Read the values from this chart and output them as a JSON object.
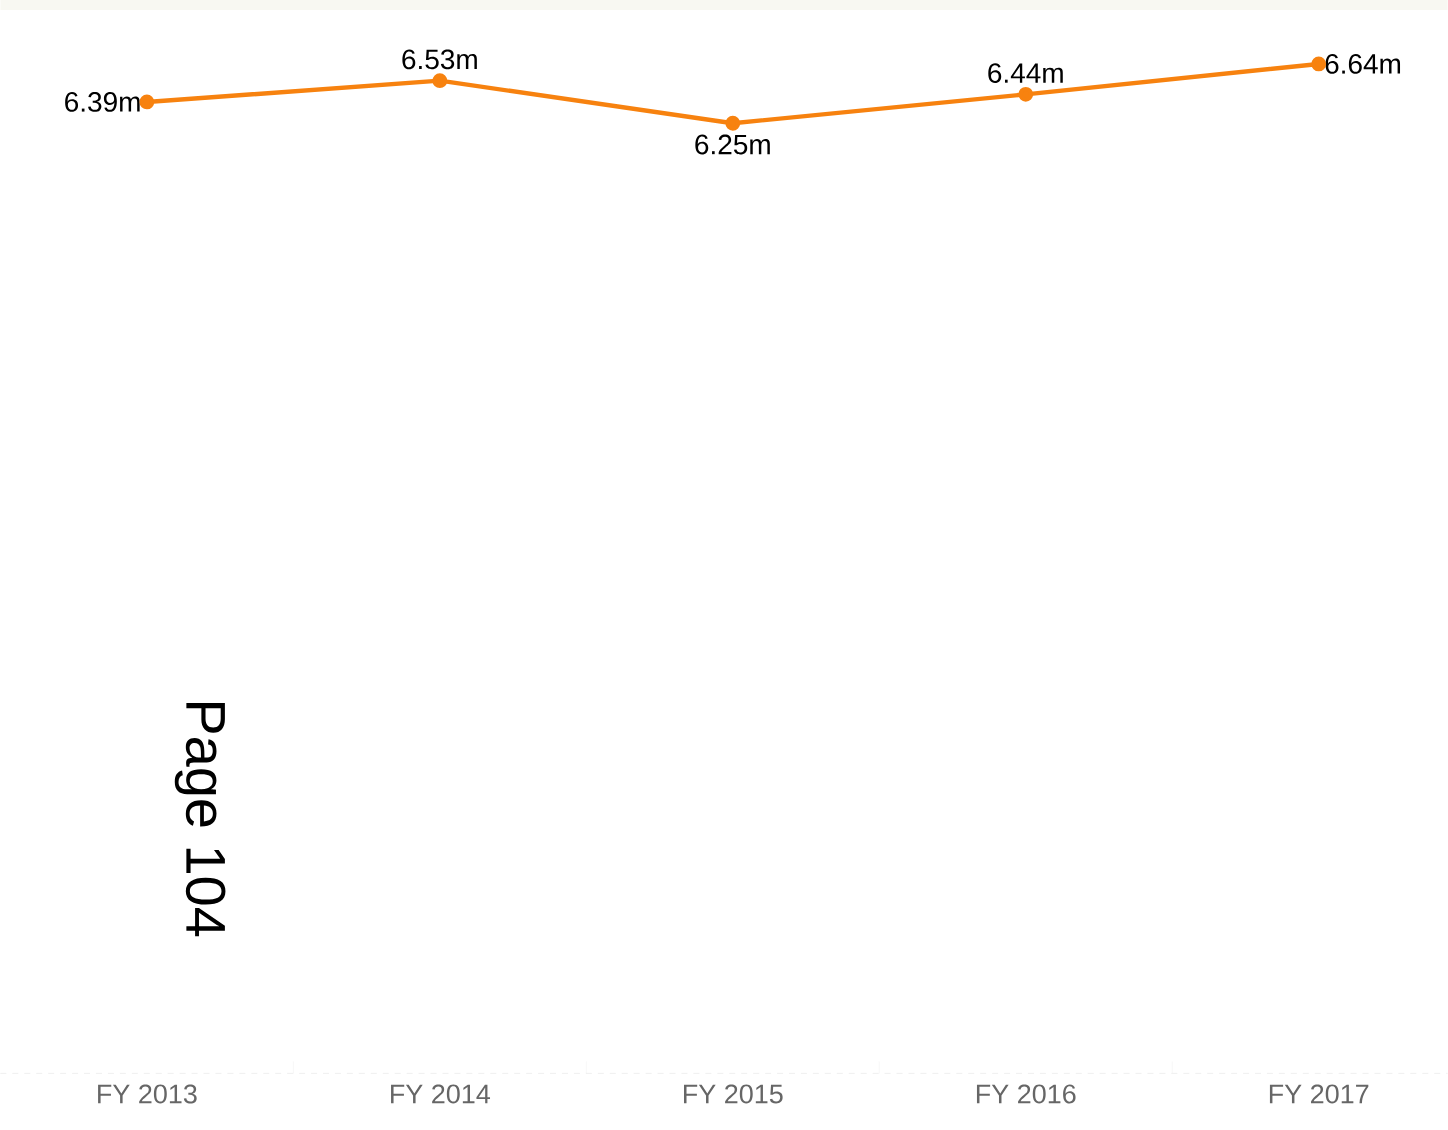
{
  "chart_data": {
    "type": "line",
    "categories": [
      "FY 2013",
      "FY 2014",
      "FY 2015",
      "FY 2016",
      "FY 2017"
    ],
    "series": [
      {
        "color": "#f7820f",
        "values": [
          6.39,
          6.53,
          6.25,
          6.44,
          6.64
        ],
        "value_labels": [
          "6.39m",
          "6.53m",
          "6.25m",
          "6.44m",
          "6.64m"
        ]
      }
    ],
    "tick_labels": "x",
    "grid": false,
    "marker": "circle",
    "line_style": "solid",
    "annotations": [
      "Page 104"
    ]
  }
}
